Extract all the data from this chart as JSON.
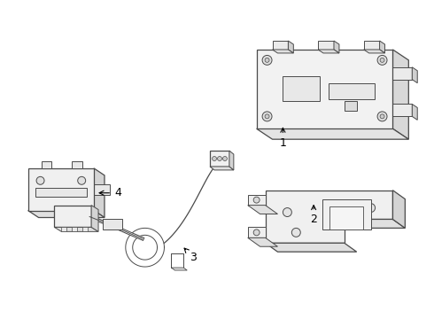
{
  "background_color": "#ffffff",
  "line_color": "#4a4a4a",
  "figure_size": [
    4.9,
    3.6
  ],
  "dpi": 100,
  "label_fontsize": 9
}
